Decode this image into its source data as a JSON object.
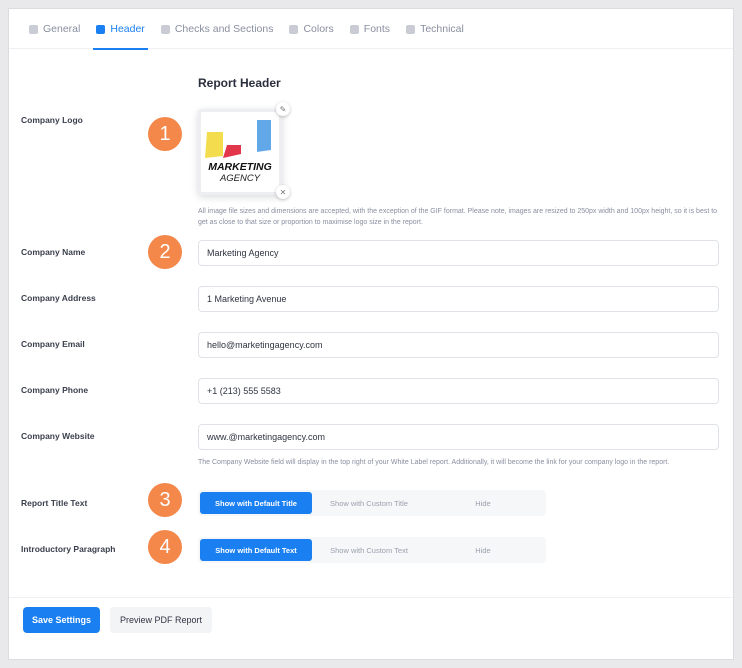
{
  "tabs": [
    {
      "label": "General",
      "icon": "sliders-icon"
    },
    {
      "label": "Header",
      "icon": "toggle-icon",
      "active": true
    },
    {
      "label": "Checks and Sections",
      "icon": "list-icon"
    },
    {
      "label": "Colors",
      "icon": "palette-icon"
    },
    {
      "label": "Fonts",
      "icon": "pen-icon"
    },
    {
      "label": "Technical",
      "icon": "code-icon"
    }
  ],
  "section_title": "Report Header",
  "logo": {
    "label": "Company Logo",
    "step": "1",
    "line1": "MARKETING",
    "line2": "AGENCY",
    "help": "All image file sizes and dimensions are accepted, with the exception of the GIF format. Please note, images are resized to 250px width and 100px height, so it is best to get as close to that size or proportion to maximise logo size in the report."
  },
  "fields": {
    "name": {
      "label": "Company Name",
      "step": "2",
      "value": "Marketing Agency"
    },
    "address": {
      "label": "Company Address",
      "value": "1 Marketing Avenue"
    },
    "email": {
      "label": "Company Email",
      "value": "hello@marketingagency.com"
    },
    "phone": {
      "label": "Company Phone",
      "value": "+1 (213) 555 5583"
    },
    "website": {
      "label": "Company Website",
      "value": "www.@marketingagency.com",
      "help": "The Company Website field will display in the top right of your White Label report. Additionally, it will become the link for your company logo in the report."
    }
  },
  "report_title": {
    "label": "Report Title Text",
    "step": "3",
    "options": [
      "Show with Default Title",
      "Show with Custom Title",
      "Hide"
    ],
    "selected": "Show with Default Title"
  },
  "intro": {
    "label": "Introductory Paragraph",
    "step": "4",
    "options": [
      "Show with Default Text",
      "Show with Custom Text",
      "Hide"
    ],
    "selected": "Show with Default Text"
  },
  "footer": {
    "save": "Save Settings",
    "preview": "Preview PDF Report"
  },
  "colors": {
    "accent": "#1a7ff0",
    "step_badge": "#f4874a"
  }
}
